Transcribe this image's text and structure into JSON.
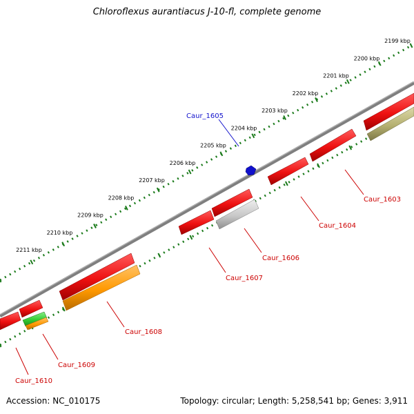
{
  "title": "Chloroflexus aurantiacus J-10-fl, complete genome",
  "accession": "Accession: NC_010175",
  "summary": "Topology: circular; Length: 5,258,541 bp; Genes: 3,911",
  "colors": {
    "backbone": "#7f7f7f",
    "tick_color": "#1a7a1a",
    "gene_red": "#ee1111",
    "gene_orange": "#ff9900",
    "gene_green": "#33cc33",
    "gene_grey": "#c8c8c8",
    "gene_olive": "#b5b071",
    "highlight_blue": "#1111cc",
    "label_red": "#cc0000"
  },
  "scale_labels": [
    "2199 kbp",
    "2200 kbp",
    "2201 kbp",
    "2202 kbp",
    "2203 kbp",
    "2204 kbp",
    "2205 kbp",
    "2206 kbp",
    "2207 kbp",
    "2208 kbp",
    "2209 kbp",
    "2210 kbp",
    "2211 kbp"
  ],
  "gene_labels": [
    "Caur_1603",
    "Caur_1604",
    "Caur_1606",
    "Caur_1607",
    "Caur_1608",
    "Caur_1609",
    "Caur_1610"
  ],
  "highlight_label": "Caur_1605"
}
